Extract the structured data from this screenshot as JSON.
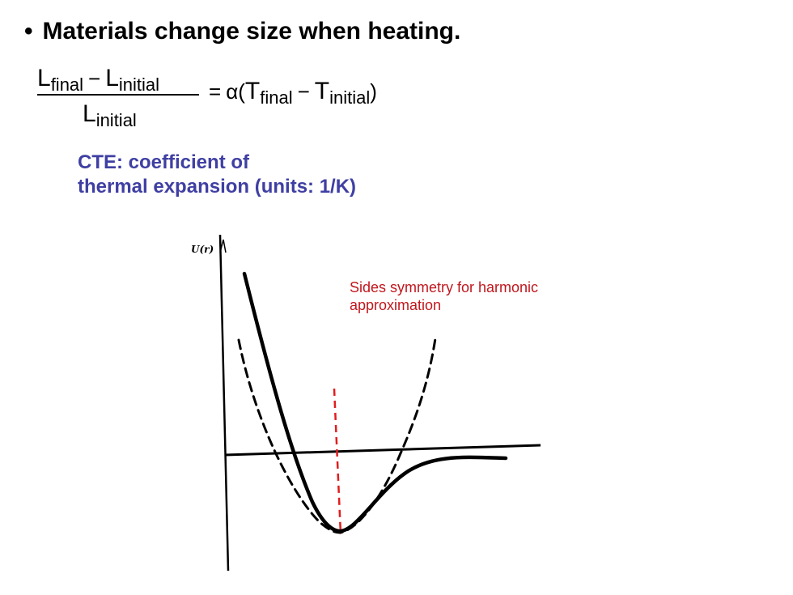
{
  "bullet": {
    "marker": "•",
    "text": "Materials change size when heating."
  },
  "equation": {
    "L": "L",
    "final": "final",
    "initial": "initial",
    "minus": "−",
    "equals": "=",
    "alpha": "α(",
    "T": "T",
    "close": ")"
  },
  "cte": {
    "line1": "CTE: coefficient of",
    "line2": "thermal expansion (units: 1/K)"
  },
  "diagram": {
    "y_axis_label": "U(r)",
    "annotation_line1": "Sides symmetry for harmonic",
    "annotation_line2": "approximation",
    "annotation_color": "#c0171d",
    "cte_color": "#3f3fa3"
  }
}
